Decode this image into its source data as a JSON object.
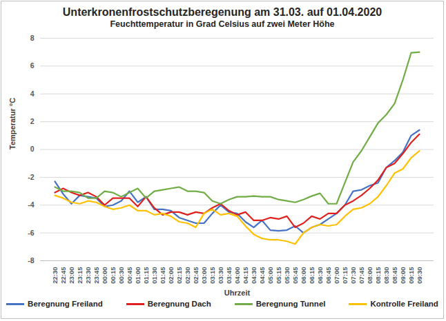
{
  "chart_data": {
    "type": "line",
    "title": "Unterkronenfrostschutzberegenung am 31.03. auf 01.04.2020",
    "subtitle": "Feuchttemperatur in Grad Celsius auf zwei Meter Höhe",
    "x_label": "Uhrzeit",
    "y_label": "Temperatur °C",
    "categories": [
      "22:30",
      "22:45",
      "23:00",
      "23:15",
      "23:30",
      "23:45",
      "00:00",
      "00:15",
      "00:30",
      "00:45",
      "01:00",
      "01:15",
      "01:30",
      "01:45",
      "02:00",
      "02:15",
      "02:30",
      "02:45",
      "03:00",
      "03:15",
      "03:30",
      "03:45",
      "04:00",
      "04:15",
      "04:30",
      "04:45",
      "05:00",
      "05:15",
      "05:30",
      "05:45",
      "06:00",
      "06:15",
      "06:30",
      "06:45",
      "07:00",
      "07:15",
      "07:30",
      "07:45",
      "08:00",
      "08:15",
      "08:30",
      "08:45",
      "09:00",
      "09:15",
      "09:30"
    ],
    "series": [
      {
        "name": "Beregnung Freiland",
        "color": "#4472c4",
        "values": [
          -2.3,
          -3.2,
          -3.9,
          -3.3,
          -3.4,
          -3.5,
          -4.1,
          -4.0,
          -3.7,
          -3.0,
          -3.8,
          -3.4,
          -4.3,
          -4.3,
          -4.4,
          -4.9,
          -5.1,
          -5.3,
          -5.3,
          -4.6,
          -4.0,
          -4.5,
          -4.6,
          -5.2,
          -5.6,
          -5.1,
          -5.8,
          -5.85,
          -5.8,
          -5.5,
          -6.0,
          -5.6,
          -5.4,
          -5.0,
          -4.6,
          -4.0,
          -3.0,
          -2.9,
          -2.6,
          -2.4,
          -1.3,
          -0.8,
          -0.2,
          1.0,
          1.4
        ]
      },
      {
        "name": "Beregnung Dach",
        "color": "#e0201e",
        "values": [
          -3.1,
          -2.8,
          -3.1,
          -3.3,
          -3.1,
          -3.4,
          -4.0,
          -3.5,
          -3.5,
          -3.5,
          -4.1,
          -3.4,
          -4.2,
          -4.7,
          -4.5,
          -4.5,
          -4.7,
          -4.5,
          -4.6,
          -4.2,
          -3.9,
          -4.4,
          -4.7,
          -4.5,
          -5.1,
          -5.1,
          -4.9,
          -5.0,
          -4.8,
          -5.6,
          -5.3,
          -4.8,
          -5.0,
          -4.6,
          -4.6,
          -4.0,
          -3.7,
          -3.3,
          -2.8,
          -2.2,
          -1.3,
          -1.0,
          -0.3,
          0.5,
          1.1
        ]
      },
      {
        "name": "Beregnung Tunnel",
        "color": "#70ad47",
        "values": [
          -2.7,
          -3.0,
          -3.0,
          -3.1,
          -3.5,
          -3.5,
          -3.0,
          -3.1,
          -3.4,
          -3.1,
          -2.8,
          -3.5,
          -3.0,
          -2.9,
          -2.8,
          -2.7,
          -3.0,
          -3.0,
          -3.1,
          -3.7,
          -3.9,
          -3.6,
          -3.4,
          -3.4,
          -3.35,
          -3.4,
          -3.4,
          -3.6,
          -3.7,
          -3.8,
          -3.6,
          -3.35,
          -3.15,
          -3.9,
          -3.9,
          -2.4,
          -0.9,
          -0.1,
          0.9,
          1.9,
          2.5,
          3.3,
          5.0,
          6.95,
          7.0
        ]
      },
      {
        "name": "Kontrolle Freiland",
        "color": "#ffc000",
        "values": [
          -3.3,
          -3.5,
          -3.8,
          -3.9,
          -3.7,
          -3.8,
          -4.1,
          -4.3,
          -4.2,
          -4.0,
          -4.4,
          -4.4,
          -4.7,
          -4.6,
          -4.8,
          -5.2,
          -5.3,
          -5.6,
          -4.6,
          -4.3,
          -4.7,
          -4.6,
          -4.8,
          -5.5,
          -6.1,
          -6.4,
          -6.5,
          -6.5,
          -6.6,
          -6.8,
          -6.0,
          -5.6,
          -5.4,
          -5.5,
          -5.4,
          -4.8,
          -4.3,
          -4.2,
          -3.9,
          -3.4,
          -2.6,
          -1.7,
          -1.4,
          -0.6,
          -0.1
        ]
      }
    ],
    "ylim": [
      -8,
      8
    ],
    "yticks": [
      -8,
      -6,
      -4,
      -2,
      0,
      2,
      4,
      6,
      8
    ],
    "grid": true,
    "legend": "bottom"
  }
}
